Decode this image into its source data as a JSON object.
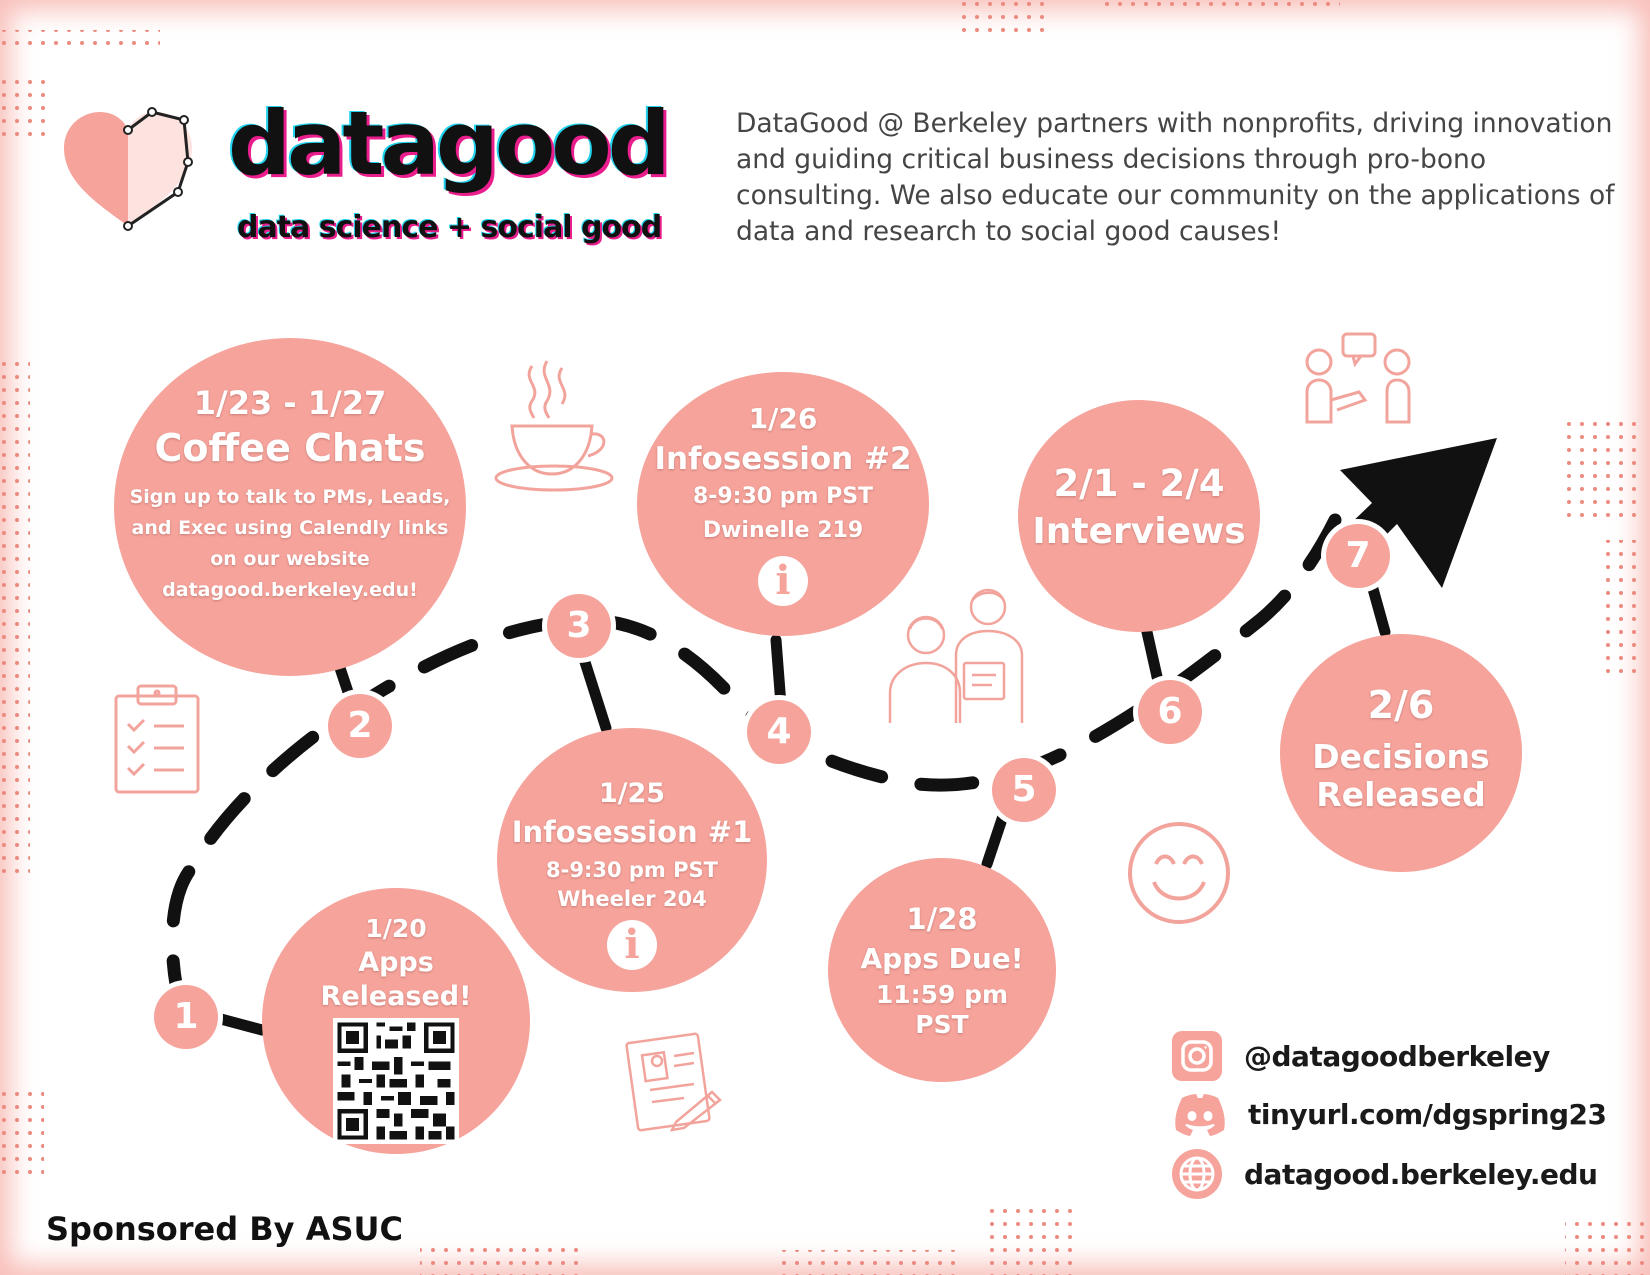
{
  "brand": {
    "name": "datagood",
    "tagline": "data science + social good"
  },
  "mission": "DataGood @ Berkeley partners with nonprofits, driving innovation and guiding critical business decisions through pro-bono consulting. We also educate our community on the applications of data and research to social good causes!",
  "timeline": [
    {
      "step": "1",
      "date": "1/20",
      "title": "Apps Released!",
      "lines": []
    },
    {
      "step": "2",
      "date": "1/23 - 1/27",
      "title": "Coffee Chats",
      "lines": [
        "Sign up to talk to PMs, Leads,",
        "and Exec using Calendly links",
        "on our website",
        "datagood.berkeley.edu!"
      ]
    },
    {
      "step": "3",
      "date": "1/25",
      "title": "Infosession #1",
      "lines": [
        "8-9:30 pm PST",
        "Wheeler 204"
      ]
    },
    {
      "step": "4",
      "date": "1/26",
      "title": "Infosession #2",
      "lines": [
        "8-9:30 pm PST",
        "Dwinelle 219"
      ]
    },
    {
      "step": "5",
      "date": "1/28",
      "title": "Apps Due!",
      "lines": [
        "11:59 pm",
        "PST"
      ]
    },
    {
      "step": "6",
      "date": "2/1 - 2/4",
      "title": "Interviews",
      "lines": []
    },
    {
      "step": "7",
      "date": "2/6",
      "title": "Decisions Released",
      "lines": []
    }
  ],
  "social": {
    "instagram": "@datagoodberkeley",
    "discord": "tinyurl.com/dgspring23",
    "website": "datagood.berkeley.edu"
  },
  "sponsor": "Sponsored By ASUC",
  "colors": {
    "accent": "#f5a39b",
    "icon_line": "#f2a49c",
    "text_dark": "#111111",
    "text_body": "#454545"
  },
  "icons": [
    "heart-logo-icon",
    "coffee-cup-icon",
    "clipboard-checklist-icon",
    "info-icon",
    "people-meeting-icon",
    "interview-icon",
    "smiley-icon",
    "resume-icon",
    "arrow-icon",
    "instagram-icon",
    "discord-icon",
    "globe-icon"
  ]
}
